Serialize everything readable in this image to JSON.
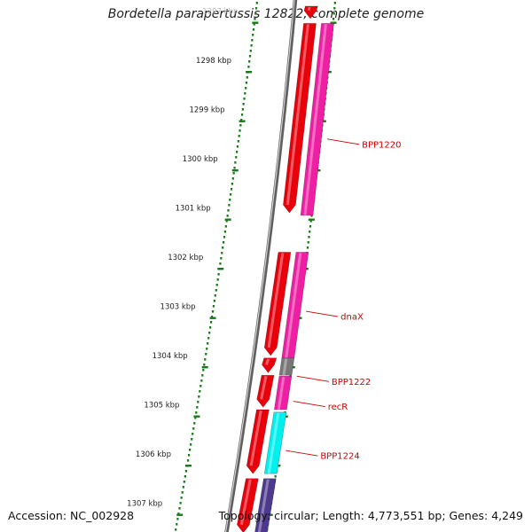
{
  "title": "Bordetella parapertussis 12822, complete genome",
  "footer": {
    "accession": "Accession: NC_002928",
    "summary": "Topology: circular; Length: 4,773,551 bp; Genes: 4,249"
  },
  "ticks": [
    {
      "label": "1297 kbp",
      "kbp": 1297,
      "faded": true
    },
    {
      "label": "1298 kbp",
      "kbp": 1298
    },
    {
      "label": "1299 kbp",
      "kbp": 1299
    },
    {
      "label": "1300 kbp",
      "kbp": 1300
    },
    {
      "label": "1301 kbp",
      "kbp": 1301
    },
    {
      "label": "1302 kbp",
      "kbp": 1302
    },
    {
      "label": "1303 kbp",
      "kbp": 1303
    },
    {
      "label": "1304 kbp",
      "kbp": 1304
    },
    {
      "label": "1305 kbp",
      "kbp": 1305
    },
    {
      "label": "1306 kbp",
      "kbp": 1306
    },
    {
      "label": "1307 kbp",
      "kbp": 1307
    }
  ],
  "colors": {
    "cds": "#e8000b",
    "gene": "#ee1fa3",
    "gene_gray": "#777777",
    "gene_cyan": "#00f0f0",
    "gene_purple": "#4d3a8c",
    "tick": "#1a7a1a",
    "label": "#cc0000",
    "backbone": "#808080"
  },
  "cds_features": [
    {
      "start_kbp": 1296.9,
      "end_kbp": 1297.15
    },
    {
      "start_kbp": 1297.25,
      "end_kbp": 1301.1
    },
    {
      "start_kbp": 1301.9,
      "end_kbp": 1304.0
    },
    {
      "start_kbp": 1304.05,
      "end_kbp": 1304.35
    },
    {
      "start_kbp": 1304.4,
      "end_kbp": 1305.05
    },
    {
      "start_kbp": 1305.1,
      "end_kbp": 1306.4
    },
    {
      "start_kbp": 1306.5,
      "end_kbp": 1307.6
    }
  ],
  "gene_features": [
    {
      "start_kbp": 1297.25,
      "end_kbp": 1301.15,
      "color": "gene"
    },
    {
      "start_kbp": 1301.9,
      "end_kbp": 1304.05,
      "color": "gene"
    },
    {
      "start_kbp": 1304.05,
      "end_kbp": 1304.4,
      "color": "gene_gray"
    },
    {
      "start_kbp": 1304.42,
      "end_kbp": 1305.1,
      "color": "gene"
    },
    {
      "start_kbp": 1305.15,
      "end_kbp": 1306.4,
      "color": "gene_cyan"
    },
    {
      "start_kbp": 1306.5,
      "end_kbp": 1307.6,
      "color": "gene_purple"
    }
  ],
  "gene_labels": [
    {
      "text": "BPP1220",
      "kbp": 1299.6
    },
    {
      "text": "dnaX",
      "kbp": 1303.1
    },
    {
      "text": "BPP1222",
      "kbp": 1304.42
    },
    {
      "text": "recR",
      "kbp": 1304.93
    },
    {
      "text": "BPP1224",
      "kbp": 1305.93
    }
  ]
}
